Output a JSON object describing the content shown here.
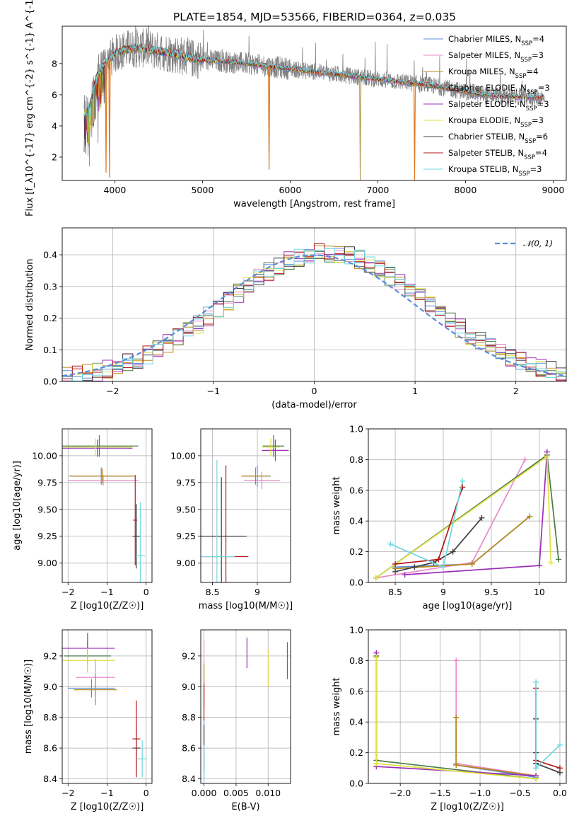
{
  "title": "PLATE=1854, MJD=53566, FIBERID=0364, z=0.035",
  "legend": [
    {
      "text": "Chabrier MILES, N_{SSP}=4",
      "color": "#5b8bd8"
    },
    {
      "text": "Salpeter MILES, N_{SSP}=3",
      "color": "#e88ac8"
    },
    {
      "text": "Kroupa MILES, N_{SSP}=4",
      "color": "#b88a1a"
    },
    {
      "text": "Chabrier ELODIE, N_{SSP}=3",
      "color": "#4a7a4a"
    },
    {
      "text": "Salpeter ELODIE, N_{SSP}=3",
      "color": "#9b30b8"
    },
    {
      "text": "Kroupa ELODIE, N_{SSP}=3",
      "color": "#e0e040"
    },
    {
      "text": "Chabrier STELIB, N_{SSP}=6",
      "color": "#404040"
    },
    {
      "text": "Salpeter STELIB, N_{SSP}=4",
      "color": "#b01818"
    },
    {
      "text": "Kroupa STELIB, N_{SSP}=3",
      "color": "#70d8e0"
    }
  ],
  "colors": [
    "#5b8bd8",
    "#e88ac8",
    "#b88a1a",
    "#4a7a4a",
    "#9b30b8",
    "#e0e040",
    "#404040",
    "#b01818",
    "#70d8e0"
  ],
  "chart_data": [
    {
      "id": "spectrum",
      "type": "line",
      "xlabel": "wavelength [Angstrom, rest frame]",
      "ylabel": "Flux [f_λ10^{-17} erg cm^{-2} s^{-1} A^{-1}]",
      "xlim": [
        3400,
        9150
      ],
      "ylim": [
        0.5,
        10.4
      ],
      "xticks": [
        4000,
        5000,
        6000,
        7000,
        8000,
        9000
      ],
      "yticks": [
        2,
        4,
        6,
        8
      ],
      "continuum": [
        [
          3650,
          4.7
        ],
        [
          3700,
          5.0
        ],
        [
          3800,
          7.3
        ],
        [
          3900,
          8.0
        ],
        [
          4000,
          8.6
        ],
        [
          4100,
          8.9
        ],
        [
          4300,
          9.0
        ],
        [
          4500,
          8.8
        ],
        [
          4700,
          8.6
        ],
        [
          4900,
          8.3
        ],
        [
          5100,
          8.2
        ],
        [
          5300,
          8.1
        ],
        [
          5500,
          8.0
        ],
        [
          5800,
          7.8
        ],
        [
          6100,
          7.6
        ],
        [
          6400,
          7.4
        ],
        [
          6700,
          7.2
        ],
        [
          7000,
          7.0
        ],
        [
          7300,
          6.8
        ],
        [
          7600,
          6.6
        ],
        [
          7900,
          6.3
        ],
        [
          8200,
          6.0
        ],
        [
          8500,
          5.9
        ],
        [
          8900,
          5.8
        ]
      ],
      "dips": [
        [
          5760,
          1.2
        ],
        [
          6800,
          0.5
        ],
        [
          7420,
          0.5
        ],
        [
          3900,
          1.0
        ],
        [
          3940,
          0.7
        ]
      ]
    },
    {
      "id": "residuals",
      "type": "step",
      "xlabel": "(data-model)/error",
      "ylabel": "Normed distribution",
      "xlim": [
        -2.5,
        2.5
      ],
      "ylim": [
        0,
        0.485
      ],
      "xticks": [
        -2,
        -1,
        0,
        1,
        2
      ],
      "yticks": [
        0.0,
        0.1,
        0.2,
        0.3,
        0.4
      ],
      "bin_width": 0.1,
      "reference_curve": "N(0,1)",
      "legend": "𝒩(0, 1)"
    },
    {
      "id": "age_vs_Z",
      "type": "errorbar",
      "xlabel": "Z [log10(Z/Z☉)]",
      "ylabel": "age [log10(age/yr)]",
      "xlim": [
        -2.15,
        0.15
      ],
      "ylim": [
        8.82,
        10.25
      ],
      "xticks": [
        -2,
        -1,
        0
      ],
      "yticks": [
        9.0,
        9.25,
        9.5,
        9.75,
        10.0
      ],
      "points": [
        {
          "x": -1.15,
          "y": 9.81,
          "ex": 0.8,
          "ey": 0.08
        },
        {
          "x": -1.1,
          "y": 9.77,
          "ex": 0.9,
          "ey": 0.05
        },
        {
          "x": -1.12,
          "y": 9.81,
          "ex": 0.85,
          "ey": 0.07
        },
        {
          "x": -1.2,
          "y": 10.09,
          "ex": 1.0,
          "ey": 0.1
        },
        {
          "x": -1.25,
          "y": 10.07,
          "ex": 0.9,
          "ey": 0.08
        },
        {
          "x": -1.3,
          "y": 10.08,
          "ex": 0.95,
          "ey": 0.08
        },
        {
          "x": -0.25,
          "y": 9.25,
          "ex": 0.1,
          "ey": 0.3
        },
        {
          "x": -0.28,
          "y": 9.4,
          "ex": 0.05,
          "ey": 0.42
        },
        {
          "x": -0.15,
          "y": 9.07,
          "ex": 0.12,
          "ey": 0.5
        }
      ]
    },
    {
      "id": "age_vs_mass",
      "type": "errorbar",
      "xlabel": "mass [log10(M/M☉)]",
      "ylabel": "",
      "xlim": [
        8.37,
        9.37
      ],
      "ylim": [
        8.82,
        10.25
      ],
      "xticks": [
        8.5,
        9.0
      ],
      "yticks": [
        9.0,
        9.25,
        9.5,
        9.75,
        10.0
      ],
      "points": [
        {
          "x": 9.0,
          "y": 9.81,
          "ex": 0.15,
          "ey": 0.1
        },
        {
          "x": 9.05,
          "y": 9.77,
          "ex": 0.2,
          "ey": 0.08
        },
        {
          "x": 8.98,
          "y": 9.81,
          "ex": 0.16,
          "ey": 0.08
        },
        {
          "x": 9.18,
          "y": 10.09,
          "ex": 0.12,
          "ey": 0.1
        },
        {
          "x": 9.2,
          "y": 10.05,
          "ex": 0.15,
          "ey": 0.1
        },
        {
          "x": 9.15,
          "y": 10.08,
          "ex": 0.1,
          "ey": 0.08
        },
        {
          "x": 8.6,
          "y": 9.25,
          "ex": 0.28,
          "ey": 0.55
        },
        {
          "x": 8.65,
          "y": 9.06,
          "ex": 0.25,
          "ey": 0.85
        },
        {
          "x": 8.55,
          "y": 9.06,
          "ex": 0.2,
          "ey": 0.9
        }
      ]
    },
    {
      "id": "weight_vs_age",
      "type": "line",
      "xlabel": "age [log10(age/yr)]",
      "ylabel": "mass weight",
      "xlim": [
        8.22,
        10.28
      ],
      "ylim": [
        0.0,
        1.0
      ],
      "xticks": [
        8.5,
        9.0,
        9.5,
        10.0
      ],
      "yticks": [
        0.0,
        0.2,
        0.4,
        0.6,
        0.8,
        1.0
      ],
      "series": [
        {
          "points": [
            [
              8.5,
              0.1
            ],
            [
              9.3,
              0.12
            ],
            [
              9.9,
              0.43
            ]
          ]
        },
        {
          "points": [
            [
              8.3,
              0.03
            ],
            [
              9.3,
              0.13
            ],
            [
              9.85,
              0.8
            ]
          ]
        },
        {
          "points": [
            [
              8.5,
              0.09
            ],
            [
              9.3,
              0.12
            ],
            [
              9.9,
              0.43
            ]
          ]
        },
        {
          "points": [
            [
              8.3,
              0.03
            ],
            [
              10.08,
              0.83
            ],
            [
              10.2,
              0.15
            ]
          ]
        },
        {
          "points": [
            [
              8.6,
              0.05
            ],
            [
              10.0,
              0.11
            ],
            [
              10.08,
              0.85
            ]
          ]
        },
        {
          "points": [
            [
              8.3,
              0.03
            ],
            [
              10.08,
              0.82
            ],
            [
              10.12,
              0.13
            ]
          ]
        },
        {
          "points": [
            [
              8.5,
              0.07
            ],
            [
              8.7,
              0.1
            ],
            [
              8.9,
              0.13
            ],
            [
              9.1,
              0.2
            ],
            [
              9.4,
              0.42
            ]
          ]
        },
        {
          "points": [
            [
              8.5,
              0.12
            ],
            [
              8.95,
              0.15
            ],
            [
              9.2,
              0.62
            ]
          ]
        },
        {
          "points": [
            [
              8.45,
              0.25
            ],
            [
              9.0,
              0.1
            ],
            [
              9.2,
              0.66
            ]
          ]
        }
      ]
    },
    {
      "id": "mass_vs_Z",
      "type": "errorbar",
      "xlabel": "Z [log10(Z/Z☉)]",
      "ylabel": "mass [log10(M/M☉)]",
      "xlim": [
        -2.15,
        0.15
      ],
      "ylim": [
        8.37,
        9.37
      ],
      "xticks": [
        -2,
        -1,
        0
      ],
      "yticks": [
        8.4,
        8.6,
        8.8,
        9.0,
        9.2
      ],
      "points": [
        {
          "x": -1.4,
          "y": 8.99,
          "ex": 0.6,
          "ey": 0.06
        },
        {
          "x": -1.3,
          "y": 9.06,
          "ex": 0.5,
          "ey": 0.12
        },
        {
          "x": -1.3,
          "y": 8.98,
          "ex": 0.55,
          "ey": 0.1
        },
        {
          "x": -1.5,
          "y": 9.2,
          "ex": 0.6,
          "ey": 0.1
        },
        {
          "x": -1.5,
          "y": 9.25,
          "ex": 0.7,
          "ey": 0.1
        },
        {
          "x": -1.5,
          "y": 9.17,
          "ex": 0.7,
          "ey": 0.08
        },
        {
          "x": -0.25,
          "y": 8.6,
          "ex": 0.1,
          "ey": 0.15
        },
        {
          "x": -0.25,
          "y": 8.66,
          "ex": 0.1,
          "ey": 0.25
        },
        {
          "x": -0.1,
          "y": 8.53,
          "ex": 0.12,
          "ey": 0.12
        }
      ]
    },
    {
      "id": "mass_vs_ebv",
      "type": "errorbar",
      "xlabel": "E(B-V)",
      "ylabel": "",
      "xlim": [
        -0.0005,
        0.0135
      ],
      "ylim": [
        8.37,
        9.37
      ],
      "xticks": [
        0.0,
        0.005,
        0.01
      ],
      "yticks": [
        8.4,
        8.6,
        8.8,
        9.0,
        9.2
      ],
      "xticklabels": [
        "0.000",
        "0.005",
        "0.010"
      ],
      "points": [
        {
          "x": 0.0,
          "y": 8.6,
          "ex": 0,
          "ey": 0.2
        },
        {
          "x": 0.0,
          "y": 9.1,
          "ex": 0,
          "ey": 0.2
        },
        {
          "x": 0.0,
          "y": 9.0,
          "ex": 0,
          "ey": 0.15
        },
        {
          "x": 0.013,
          "y": 9.17,
          "ex": 0,
          "ey": 0.12
        },
        {
          "x": 0.0067,
          "y": 9.22,
          "ex": 0,
          "ey": 0.1
        },
        {
          "x": 0.01,
          "y": 9.12,
          "ex": 0,
          "ey": 0.12
        },
        {
          "x": 0.0,
          "y": 8.6,
          "ex": 0,
          "ey": 0.15
        },
        {
          "x": 0.0,
          "y": 8.9,
          "ex": 0,
          "ey": 0.12
        },
        {
          "x": 0.0,
          "y": 8.5,
          "ex": 0,
          "ey": 0.12
        }
      ]
    },
    {
      "id": "weight_vs_Z",
      "type": "line",
      "xlabel": "Z [log10(Z/Z☉)]",
      "ylabel": "mass weight",
      "xlim": [
        -2.4,
        0.08
      ],
      "ylim": [
        0.0,
        1.0
      ],
      "xticks": [
        -2.0,
        -1.5,
        -1.0,
        -0.5,
        0.0
      ],
      "yticks": [
        0.0,
        0.2,
        0.4,
        0.6,
        0.8,
        1.0
      ],
      "xticklabels": [
        "−2.0",
        "−1.5",
        "−1.0",
        "−0.5",
        "0.0"
      ],
      "series": [
        {
          "points": [
            [
              -1.3,
              0.43
            ],
            [
              -1.3,
              0.12
            ],
            [
              -0.3,
              0.04
            ]
          ]
        },
        {
          "points": [
            [
              -1.3,
              0.8
            ],
            [
              -1.3,
              0.13
            ],
            [
              -0.3,
              0.05
            ]
          ]
        },
        {
          "points": [
            [
              -1.3,
              0.43
            ],
            [
              -1.3,
              0.12
            ],
            [
              -0.3,
              0.05
            ]
          ]
        },
        {
          "points": [
            [
              -2.3,
              0.83
            ],
            [
              -2.3,
              0.15
            ],
            [
              -0.3,
              0.03
            ]
          ]
        },
        {
          "points": [
            [
              -2.3,
              0.85
            ],
            [
              -2.3,
              0.11
            ],
            [
              -0.3,
              0.05
            ]
          ]
        },
        {
          "points": [
            [
              -2.3,
              0.82
            ],
            [
              -2.3,
              0.13
            ],
            [
              -0.3,
              0.03
            ]
          ]
        },
        {
          "points": [
            [
              -0.3,
              0.42
            ],
            [
              -0.3,
              0.2
            ],
            [
              -0.3,
              0.13
            ],
            [
              0.0,
              0.07
            ]
          ]
        },
        {
          "points": [
            [
              -0.3,
              0.62
            ],
            [
              -0.3,
              0.15
            ],
            [
              0.0,
              0.1
            ]
          ]
        },
        {
          "points": [
            [
              -0.3,
              0.66
            ],
            [
              -0.3,
              0.1
            ],
            [
              0.0,
              0.25
            ]
          ]
        }
      ]
    }
  ]
}
